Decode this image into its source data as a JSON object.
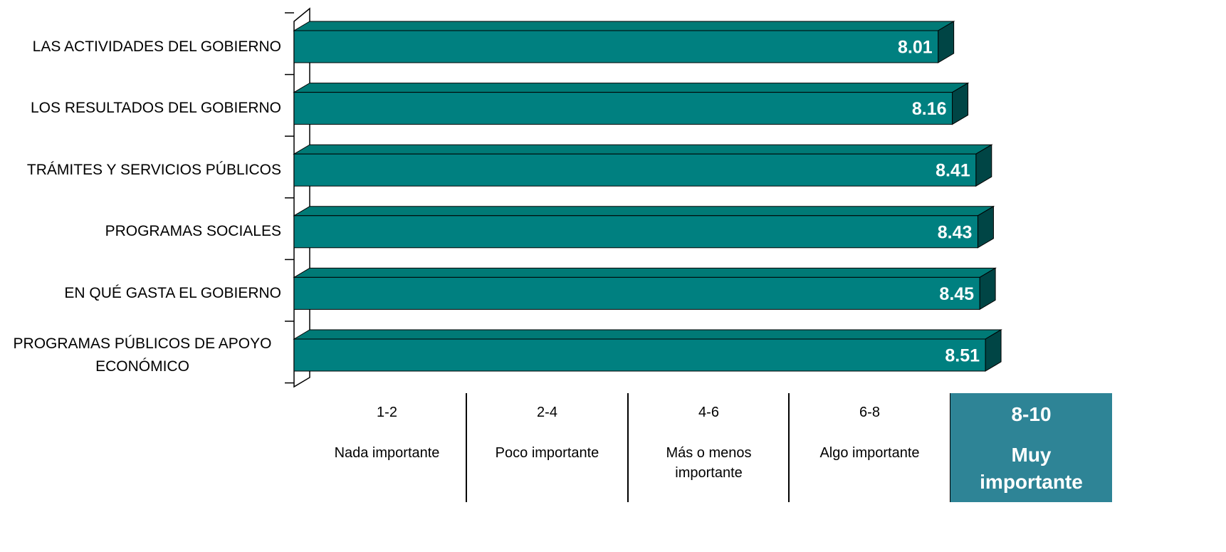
{
  "chart_data": {
    "type": "bar3d_horizontal",
    "categories": [
      "LAS ACTIVIDADES DEL GOBIERNO",
      "LOS RESULTADOS DEL GOBIERNO",
      "TRÁMITES Y SERVICIOS PÚBLICOS",
      "PROGRAMAS SOCIALES",
      "EN QUÉ GASTA EL GOBIERNO",
      "PROGRAMAS PÚBLICOS DE APOYO ECONÓMICO"
    ],
    "values": [
      8.01,
      8.16,
      8.41,
      8.43,
      8.45,
      8.51
    ],
    "color": "#008080",
    "top_color": "#007a76",
    "side_color": "#004545",
    "xlim": [
      1.2,
      10
    ],
    "scale_bands": [
      {
        "range": "1-2",
        "label": "Nada importante"
      },
      {
        "range": "2-4",
        "label": "Poco importante"
      },
      {
        "range": "4-6",
        "label": "Más o menos importante"
      },
      {
        "range": "6-8",
        "label": "Algo importante"
      },
      {
        "range": "8-10",
        "label": "Muy importante"
      }
    ],
    "highlighted_band": 4,
    "highlight_color": "#2e8496"
  }
}
